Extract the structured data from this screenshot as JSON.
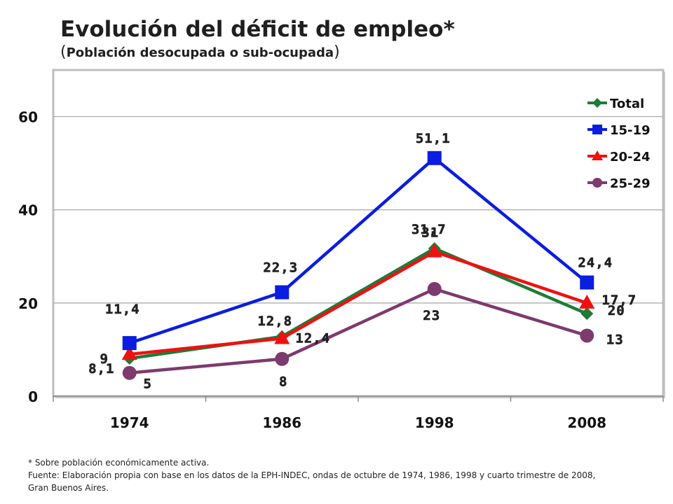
{
  "header": {
    "title": "Evolución del déficit de empleo*",
    "subtitle": "Población desocupada o sub-ocupada"
  },
  "footnotes": {
    "note": "* Sobre población económicamente activa.",
    "source_line1": "Fuente: Elaboración propia con base en los datos de la EPH-INDEC, ondas de octubre de 1974, 1986, 1998 y cuarto trimestre de 2008,",
    "source_line2": "Gran Buenos Aires."
  },
  "chart_data": {
    "type": "line",
    "categories": [
      "1974",
      "1986",
      "1998",
      "2008"
    ],
    "ylim": [
      0,
      70
    ],
    "yticks": [
      0,
      20,
      40,
      60
    ],
    "grid": true,
    "legend_position": "top-right",
    "series": [
      {
        "name": "Total",
        "color": "#1e7b3a",
        "marker": "diamond",
        "values": [
          8.1,
          12.8,
          31.7,
          17.7
        ],
        "labels": [
          "8,1",
          "12,8",
          "31,7",
          "17,7"
        ]
      },
      {
        "name": "15-19",
        "color": "#0b1de0",
        "marker": "square",
        "values": [
          11.4,
          22.3,
          51.1,
          24.4
        ],
        "labels": [
          "11,4",
          "22,3",
          "51,1",
          "24,4"
        ]
      },
      {
        "name": "20-24",
        "color": "#ee1111",
        "marker": "triangle",
        "values": [
          9,
          12.4,
          31,
          20
        ],
        "labels": [
          "9",
          "12,4",
          "31",
          "20"
        ]
      },
      {
        "name": "25-29",
        "color": "#7d3a6e",
        "marker": "circle",
        "values": [
          5,
          8,
          23,
          13
        ],
        "labels": [
          "5",
          "8",
          "23",
          "13"
        ]
      }
    ]
  }
}
